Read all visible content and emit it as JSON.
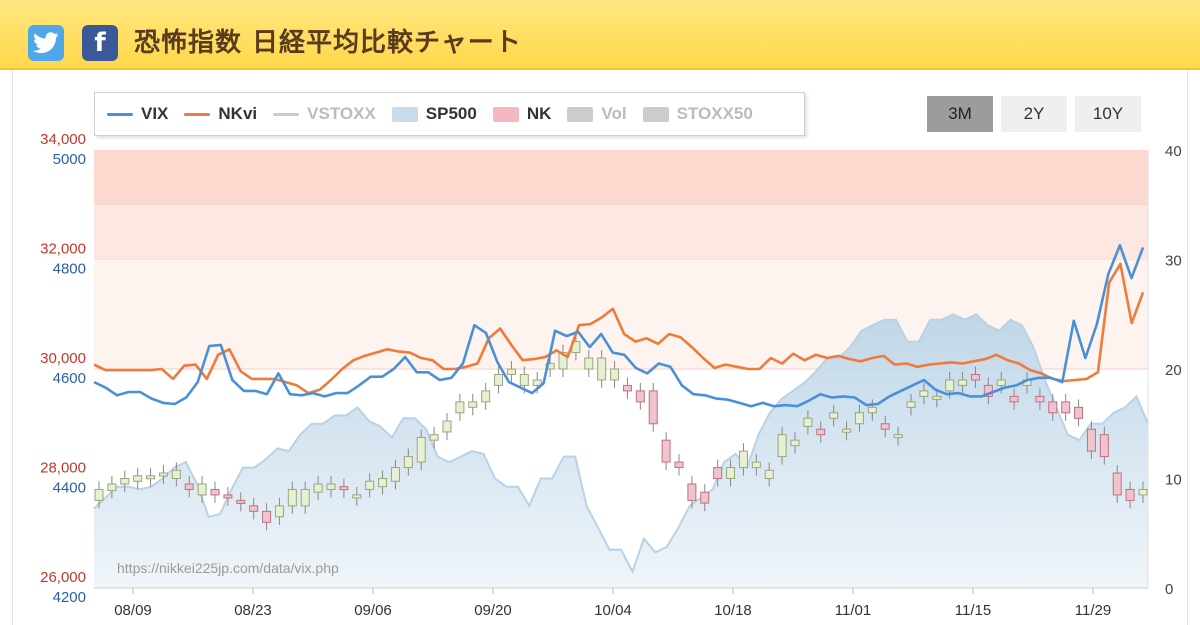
{
  "header": {
    "title": "恐怖指数 日経平均比較チャート",
    "twitter_icon": "twitter-icon",
    "facebook_icon": "facebook-icon",
    "facebook_glyph": "f"
  },
  "legend": [
    {
      "label": "VIX",
      "kind": "line",
      "color": "#4a90d9",
      "active": true
    },
    {
      "label": "NKvi",
      "kind": "line",
      "color": "#f07a3c",
      "active": true
    },
    {
      "label": "VSTOXX",
      "kind": "line",
      "color": "#cccccc",
      "active": false
    },
    {
      "label": "SP500",
      "kind": "box",
      "color": "#c7dbea",
      "active": true
    },
    {
      "label": "NK",
      "kind": "box",
      "color": "#f4b8c0",
      "active": true
    },
    {
      "label": "Vol",
      "kind": "box",
      "color": "#cccccc",
      "active": false
    },
    {
      "label": "STOXX50",
      "kind": "box",
      "color": "#cccccc",
      "active": false
    }
  ],
  "range_buttons": [
    {
      "label": "3M",
      "active": true
    },
    {
      "label": "2Y",
      "active": false
    },
    {
      "label": "10Y",
      "active": false
    }
  ],
  "watermark": "https://nikkei225jp.com/data/vix.php",
  "chart_data": {
    "type": "line",
    "nk_axis": {
      "ticks": [
        "26,000",
        "28,000",
        "30,000",
        "32,000",
        "34,000"
      ],
      "range": [
        26000,
        34000
      ],
      "color": "#c0392b"
    },
    "sp_axis": {
      "ticks": [
        "4200",
        "4400",
        "4600",
        "4800",
        "5000"
      ],
      "range": [
        4200,
        5000
      ],
      "color": "#2c5fa0"
    },
    "vix_axis": {
      "ticks": [
        "0",
        "10",
        "20",
        "30",
        "40"
      ],
      "range": [
        0,
        40
      ]
    },
    "x_ticks": [
      "08/09",
      "08/23",
      "09/06",
      "09/20",
      "10/04",
      "10/18",
      "11/01",
      "11/15",
      "11/29"
    ],
    "bands": [
      {
        "from": 35,
        "to": 40,
        "color": "#fbd9cf"
      },
      {
        "from": 30,
        "to": 35,
        "color": "#fde8e1"
      },
      {
        "from": 20,
        "to": 30,
        "color": "#fef4ef"
      }
    ],
    "series": [
      {
        "name": "VIX",
        "color": "#4a90d9",
        "values": [
          18.8,
          18.3,
          17.6,
          17.9,
          17.9,
          17.3,
          16.9,
          16.8,
          17.4,
          18.8,
          22.1,
          22.2,
          19.0,
          18.0,
          18.0,
          17.7,
          19.6,
          17.7,
          17.6,
          17.8,
          17.5,
          17.8,
          17.8,
          18.5,
          19.3,
          19.3,
          20.0,
          21.1,
          19.7,
          19.7,
          19.0,
          19.2,
          20.5,
          24.0,
          23.3,
          20.6,
          18.8,
          18.3,
          17.8,
          18.7,
          23.5,
          23.0,
          23.4,
          22.0,
          23.2,
          21.5,
          21.3,
          20.1,
          19.6,
          20.5,
          20.2,
          18.5,
          17.7,
          17.6,
          17.3,
          17.2,
          16.9,
          16.6,
          16.9,
          16.6,
          16.7,
          16.6,
          17.1,
          17.7,
          17.4,
          17.5,
          17.4,
          16.7,
          16.8,
          17.5,
          18.0,
          18.5,
          19.0,
          18.1,
          17.7,
          17.8,
          17.5,
          17.5,
          17.9,
          18.3,
          18.5,
          19.0,
          19.2,
          19.2,
          18.8,
          24.4,
          21.0,
          24.1,
          28.7,
          31.3,
          28.3,
          31.1
        ]
      },
      {
        "name": "NKvi",
        "color": "#f07a3c",
        "values": [
          20.4,
          19.9,
          19.9,
          19.9,
          19.9,
          19.9,
          20.0,
          19.1,
          20.3,
          20.4,
          19.1,
          21.3,
          21.8,
          19.8,
          19.1,
          19.1,
          19.1,
          18.8,
          18.5,
          17.8,
          18.1,
          19.0,
          20.0,
          20.8,
          21.2,
          21.5,
          21.8,
          21.6,
          21.5,
          21.0,
          20.8,
          20.0,
          20.0,
          20.2,
          20.5,
          22.8,
          23.7,
          22.2,
          20.8,
          20.9,
          21.1,
          21.7,
          21.1,
          24.0,
          24.1,
          24.7,
          25.5,
          23.2,
          22.5,
          22.8,
          22.3,
          23.2,
          22.9,
          22.0,
          21.0,
          20.1,
          20.4,
          20.2,
          20.0,
          20.0,
          21.0,
          20.5,
          21.4,
          20.8,
          21.3,
          21.0,
          21.2,
          20.9,
          20.7,
          21.0,
          21.2,
          20.4,
          20.5,
          20.2,
          20.4,
          20.5,
          20.6,
          20.5,
          20.7,
          20.9,
          21.3,
          20.8,
          20.5,
          19.9,
          19.6,
          19.1,
          18.9,
          19.0,
          19.1,
          19.7,
          27.9,
          29.6,
          24.2,
          27.0
        ]
      },
      {
        "name": "SP500",
        "color": "#c7dbea",
        "values": [
          4345,
          4365,
          4385,
          4385,
          4380,
          4385,
          4400,
          4420,
          4430,
          4390,
          4330,
          4335,
          4380,
          4420,
          4420,
          4435,
          4455,
          4450,
          4480,
          4500,
          4500,
          4515,
          4515,
          4530,
          4505,
          4495,
          4475,
          4510,
          4510,
          4490,
          4440,
          4430,
          4440,
          4450,
          4445,
          4400,
          4385,
          4385,
          4350,
          4400,
          4400,
          4440,
          4440,
          4350,
          4310,
          4270,
          4270,
          4230,
          4290,
          4265,
          4275,
          4310,
          4350,
          4365,
          4380,
          4430,
          4445,
          4420,
          4480,
          4520,
          4545,
          4560,
          4575,
          4595,
          4620,
          4620,
          4640,
          4670,
          4680,
          4690,
          4690,
          4650,
          4650,
          4690,
          4690,
          4700,
          4690,
          4700,
          4680,
          4670,
          4690,
          4680,
          4640,
          4580,
          4530,
          4480,
          4470,
          4500,
          4500,
          4520,
          4530,
          4550,
          4500
        ]
      },
      {
        "name": "NK",
        "color": "#f4b8c0",
        "candles": [
          [
            27600,
            27800
          ],
          [
            27780,
            27900
          ],
          [
            27900,
            28000
          ],
          [
            27950,
            28050
          ],
          [
            28000,
            28050
          ],
          [
            28050,
            28100
          ],
          [
            28000,
            28150
          ],
          [
            27900,
            27800
          ],
          [
            27700,
            27900
          ],
          [
            27800,
            27700
          ],
          [
            27700,
            27650
          ],
          [
            27600,
            27550
          ],
          [
            27500,
            27400
          ],
          [
            27400,
            27200
          ],
          [
            27300,
            27500
          ],
          [
            27500,
            27800
          ],
          [
            27500,
            27800
          ],
          [
            27750,
            27900
          ],
          [
            27800,
            27900
          ],
          [
            27850,
            27800
          ],
          [
            27700,
            27700
          ],
          [
            27800,
            27950
          ],
          [
            27850,
            28000
          ],
          [
            27950,
            28200
          ],
          [
            28200,
            28400
          ],
          [
            28300,
            28750
          ],
          [
            28700,
            28800
          ],
          [
            28850,
            29050
          ],
          [
            29200,
            29400
          ],
          [
            29300,
            29400
          ],
          [
            29400,
            29600
          ],
          [
            29700,
            29900
          ],
          [
            29900,
            30000
          ],
          [
            29700,
            29900
          ],
          [
            29700,
            29800
          ],
          [
            30000,
            30100
          ],
          [
            30000,
            30300
          ],
          [
            30300,
            30500
          ],
          [
            30000,
            30200
          ],
          [
            29800,
            30200
          ],
          [
            29800,
            30000
          ],
          [
            29700,
            29600
          ],
          [
            29600,
            29400
          ],
          [
            29600,
            29000
          ],
          [
            28700,
            28300
          ],
          [
            28300,
            28200
          ],
          [
            27900,
            27600
          ],
          [
            27750,
            27550
          ],
          [
            28200,
            28000
          ],
          [
            28000,
            28200
          ],
          [
            28200,
            28500
          ],
          [
            28200,
            28300
          ],
          [
            28000,
            28150
          ],
          [
            28400,
            28800
          ],
          [
            28600,
            28700
          ],
          [
            28950,
            29100
          ],
          [
            28900,
            28800
          ],
          [
            29100,
            29200
          ],
          [
            28900,
            28900
          ],
          [
            29000,
            29200
          ],
          [
            29200,
            29300
          ],
          [
            29000,
            28900
          ],
          [
            28800,
            28800
          ],
          [
            29300,
            29400
          ],
          [
            29500,
            29600
          ],
          [
            29500,
            29500
          ],
          [
            29600,
            29800
          ],
          [
            29700,
            29800
          ],
          [
            29900,
            29800
          ],
          [
            29700,
            29500
          ],
          [
            29700,
            29800
          ],
          [
            29500,
            29400
          ],
          [
            29700,
            29800
          ],
          [
            29500,
            29400
          ],
          [
            29400,
            29200
          ],
          [
            29400,
            29200
          ],
          [
            29300,
            29100
          ],
          [
            28900,
            28500
          ],
          [
            28800,
            28400
          ],
          [
            28100,
            27700
          ],
          [
            27800,
            27600
          ],
          [
            27700,
            27800
          ]
        ]
      }
    ]
  }
}
